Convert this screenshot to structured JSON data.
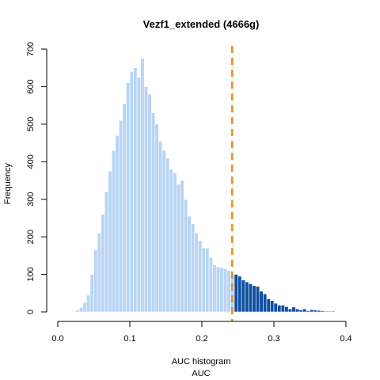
{
  "chart_data": {
    "type": "bar",
    "title": "Vezf1_extended (4666g)",
    "xlabel": "AUC histogram",
    "xlabel2": "AUC",
    "ylabel": "Frequency",
    "xlim": [
      0,
      0.4
    ],
    "ylim": [
      0,
      700
    ],
    "xticks": [
      "0.0",
      "0.1",
      "0.2",
      "0.3",
      "0.4"
    ],
    "xtick_values": [
      0,
      0.1,
      0.2,
      0.3,
      0.4
    ],
    "yticks": [
      "0",
      "100",
      "200",
      "300",
      "400",
      "500",
      "600",
      "700"
    ],
    "ytick_values": [
      0,
      100,
      200,
      300,
      400,
      500,
      600,
      700
    ],
    "bin_start": 0.02,
    "bin_width": 0.005,
    "threshold": 0.242,
    "threshold_color": "#F28A1E",
    "below_color": "#B9D5F3",
    "above_color": "#0F4FA0",
    "values": [
      2,
      5,
      12,
      25,
      45,
      100,
      165,
      210,
      260,
      320,
      375,
      430,
      470,
      510,
      555,
      610,
      640,
      650,
      625,
      675,
      600,
      580,
      530,
      500,
      455,
      430,
      410,
      380,
      370,
      340,
      350,
      300,
      255,
      235,
      210,
      190,
      170,
      170,
      145,
      125,
      120,
      118,
      115,
      110,
      100,
      100,
      95,
      85,
      80,
      75,
      70,
      68,
      55,
      48,
      35,
      30,
      23,
      18,
      18,
      14,
      8,
      13,
      8,
      5,
      8,
      3,
      6,
      5,
      4,
      3,
      2,
      2,
      2,
      1,
      1,
      1
    ]
  }
}
